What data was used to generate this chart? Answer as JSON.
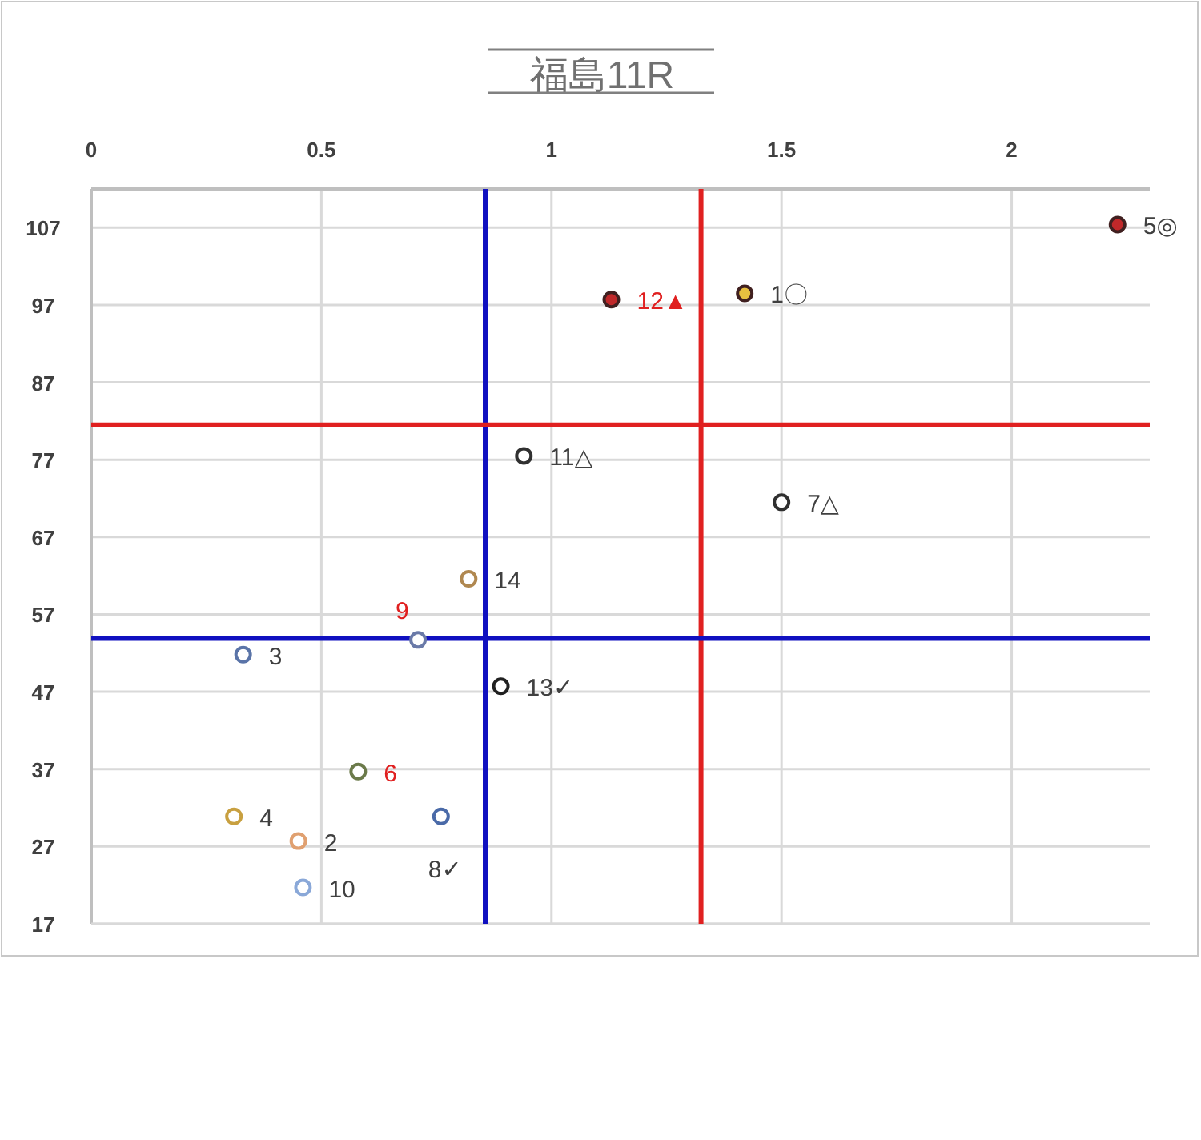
{
  "chart_data": {
    "type": "scatter",
    "title": "福島11R",
    "xlim": [
      0,
      2.3
    ],
    "xticks": [
      0,
      0.5,
      1,
      1.5,
      2
    ],
    "ylim": [
      17,
      112
    ],
    "yticks": [
      17,
      27,
      37,
      47,
      57,
      67,
      77,
      87,
      97,
      107
    ],
    "grid": true,
    "marker": "circle",
    "series": [
      {
        "x": [
          2.23,
          1.13,
          1.42
        ],
        "values": [
          107.4,
          97.7,
          98.5
        ],
        "colors": [
          "#c0282a",
          "#c0282a",
          "#e8c040"
        ]
      },
      {
        "x": [
          0.94,
          1.5,
          0.82,
          0.71,
          0.33,
          0.89,
          0.58,
          0.76,
          0.31,
          0.45,
          0.46
        ],
        "values": [
          77.5,
          71.5,
          61.6,
          53.7,
          51.8,
          47.7,
          36.7,
          30.9,
          30.9,
          27.7,
          21.7
        ],
        "colors": [
          "#303030",
          "#303030",
          "#b08850",
          "#6a7aa8",
          "#5a74a8",
          "#202020",
          "#6b7a4a",
          "#4a6aa8",
          "#c8a040",
          "#e0a070",
          "#8aa8d8"
        ]
      }
    ],
    "annotations": [
      {
        "text": "5◎",
        "x": 2.23,
        "y": 107.4
      },
      {
        "text": "12▲",
        "x": 1.13,
        "y": 97.7
      },
      {
        "text": "1〇",
        "x": 1.42,
        "y": 98.5
      },
      {
        "text": "11△",
        "x": 0.94,
        "y": 77.5
      },
      {
        "text": "7△",
        "x": 1.5,
        "y": 71.5
      },
      {
        "text": "14",
        "x": 0.82,
        "y": 61.6
      },
      {
        "text": "9",
        "x": 0.71,
        "y": 53.7
      },
      {
        "text": "3",
        "x": 0.33,
        "y": 51.8
      },
      {
        "text": "13✓",
        "x": 0.89,
        "y": 47.7
      },
      {
        "text": "6",
        "x": 0.58,
        "y": 36.7
      },
      {
        "text": "8✓",
        "x": 0.76,
        "y": 30.9
      },
      {
        "text": "4",
        "x": 0.31,
        "y": 30.9
      },
      {
        "text": "2",
        "x": 0.45,
        "y": 27.7
      },
      {
        "text": "10",
        "x": 0.46,
        "y": 21.7
      }
    ],
    "ref_lines": [
      {
        "axis": "x",
        "value": 0.856,
        "color": "#1010c0"
      },
      {
        "axis": "x",
        "value": 1.325,
        "color": "#e02020"
      },
      {
        "axis": "y",
        "value": 81.5,
        "color": "#e02020"
      },
      {
        "axis": "y",
        "value": 53.9,
        "color": "#1010c0"
      }
    ]
  }
}
